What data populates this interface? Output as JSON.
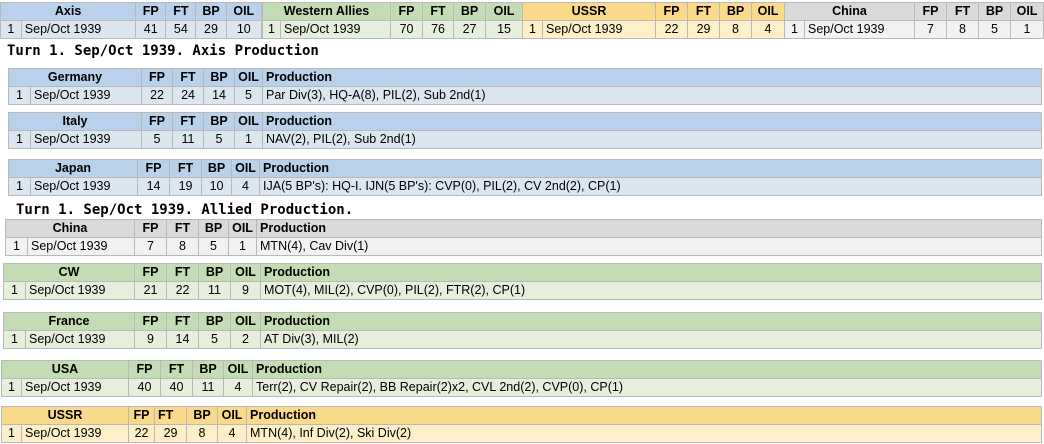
{
  "top_bar": {
    "axis": {
      "name": "Axis",
      "turn": "1",
      "date": "Sep/Oct 1939",
      "fp": "41",
      "ft": "54",
      "bp": "29",
      "oil": "10"
    },
    "wa": {
      "name": "Western Allies",
      "turn": "1",
      "date": "Sep/Oct 1939",
      "fp": "70",
      "ft": "76",
      "bp": "27",
      "oil": "15"
    },
    "ussr": {
      "name": "USSR",
      "turn": "1",
      "date": "Sep/Oct 1939",
      "fp": "22",
      "ft": "29",
      "bp": "8",
      "oil": "4"
    },
    "china": {
      "name": "China",
      "turn": "1",
      "date": "Sep/Oct 1939",
      "fp": "7",
      "ft": "8",
      "bp": "5",
      "oil": "1"
    }
  },
  "col_headers": {
    "fp": "FP",
    "ft": "FT",
    "bp": "BP",
    "oil": "OIL",
    "production": "Production"
  },
  "axis_title": "Turn 1.  Sep/Oct 1939.  Axis Production",
  "allied_title": "Turn 1.  Sep/Oct 1939.  Allied Production.",
  "nations": {
    "germany": {
      "name": "Germany",
      "turn": "1",
      "date": "Sep/Oct 1939",
      "fp": "22",
      "ft": "24",
      "bp": "14",
      "oil": "5",
      "production": "Par Div(3), HQ-A(8), PIL(2), Sub 2nd(1)"
    },
    "italy": {
      "name": "Italy",
      "turn": "1",
      "date": "Sep/Oct 1939",
      "fp": "5",
      "ft": "11",
      "bp": "5",
      "oil": "1",
      "production": "NAV(2), PIL(2), Sub 2nd(1)"
    },
    "japan": {
      "name": "Japan",
      "turn": "1",
      "date": "Sep/Oct 1939",
      "fp": "14",
      "ft": "19",
      "bp": "10",
      "oil": "4",
      "production": "IJA(5 BP's): HQ-I.  IJN(5 BP's): CVP(0), PIL(2), CV 2nd(2), CP(1)"
    },
    "china": {
      "name": "China",
      "turn": "1",
      "date": "Sep/Oct 1939",
      "fp": "7",
      "ft": "8",
      "bp": "5",
      "oil": "1",
      "production": "MTN(4), Cav Div(1)"
    },
    "cw": {
      "name": "CW",
      "turn": "1",
      "date": "Sep/Oct 1939",
      "fp": "21",
      "ft": "22",
      "bp": "11",
      "oil": "9",
      "production": "MOT(4), MIL(2), CVP(0), PIL(2), FTR(2), CP(1)"
    },
    "france": {
      "name": "France",
      "turn": "1",
      "date": "Sep/Oct 1939",
      "fp": "9",
      "ft": "14",
      "bp": "5",
      "oil": "2",
      "production": "AT Div(3), MIL(2)"
    },
    "usa": {
      "name": "USA",
      "turn": "1",
      "date": "Sep/Oct 1939",
      "fp": "40",
      "ft": "40",
      "bp": "11",
      "oil": "4",
      "production": "Terr(2), CV Repair(2), BB Repair(2)x2, CVL 2nd(2), CVP(0), CP(1)"
    },
    "ussr": {
      "name": "USSR",
      "turn": "1",
      "date": "Sep/Oct 1939",
      "fp": "22",
      "ft": "29",
      "bp": "8",
      "oil": "4",
      "production": "MTN(4), Inf Div(2), Ski Div(2)"
    }
  }
}
